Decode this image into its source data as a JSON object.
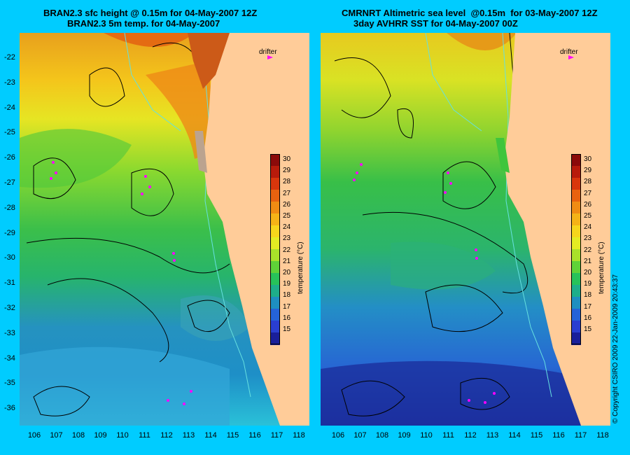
{
  "panels": [
    {
      "title_line1": "BRAN2.3 sfc height @ 0.15m for 04-May-2007 12Z",
      "title_line2": "BRAN2.3 5m temp. for 04-May-2007",
      "drifter_label": "drifter"
    },
    {
      "title_line1": "CMRNRT Altimetric sea level  @0.15m  for 03-May-2007 12Z",
      "title_line2": "3day AVHRR SST for 04-May-2007 00Z",
      "drifter_label": "drifter"
    }
  ],
  "y_ticks": [
    "-22",
    "-23",
    "-24",
    "-25",
    "-26",
    "-27",
    "-28",
    "-29",
    "-30",
    "-31",
    "-32",
    "-33",
    "-34",
    "-35",
    "-36"
  ],
  "x_ticks": [
    "106",
    "107",
    "108",
    "109",
    "110",
    "111",
    "112",
    "113",
    "114",
    "115",
    "116",
    "117",
    "118"
  ],
  "colorbar": {
    "title": "temperature (°C)",
    "ticks": [
      "30",
      "29",
      "28",
      "27",
      "26",
      "25",
      "24",
      "23",
      "22",
      "21",
      "20",
      "19",
      "18",
      "17",
      "16",
      "15"
    ],
    "colors": [
      "#8b0a0a",
      "#b81b0b",
      "#d9360c",
      "#e8620f",
      "#f08c13",
      "#f5b317",
      "#f6d61c",
      "#e4ec23",
      "#a9e12a",
      "#5fd238",
      "#27c25a",
      "#1eae8a",
      "#1e8fc0",
      "#2563d8",
      "#2a3ed0",
      "#1a1f9a"
    ]
  },
  "credit": "© Copyright CSIRO 2009   22-Jan-2009 20:43:37",
  "colors": {
    "background": "#00ccff",
    "land": "#ffcc99",
    "drifter": "#ff00ff"
  }
}
